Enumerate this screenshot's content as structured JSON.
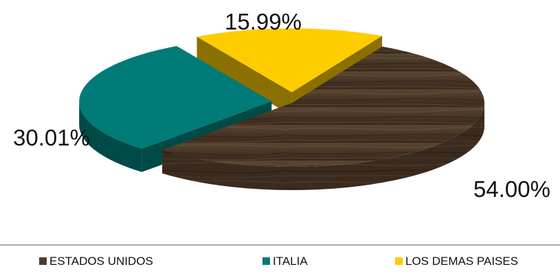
{
  "chart_data": {
    "type": "pie",
    "style": "3d-exploded",
    "legend_position": "bottom",
    "slices": [
      {
        "name": "ESTADOS UNIDOS",
        "value": 54.0,
        "label": "54.00%",
        "color": "#4e3b2a",
        "texture": "wood-grain"
      },
      {
        "name": "ITALIA",
        "value": 30.01,
        "label": "30.01%",
        "color": "#007b78"
      },
      {
        "name": "LOS DEMAS PAISES",
        "value": 15.99,
        "label": "15.99%",
        "color": "#ffcc00"
      }
    ],
    "legend": [
      {
        "name": "ESTADOS UNIDOS",
        "color": "#4e3b2a"
      },
      {
        "name": "ITALIA",
        "color": "#007b78"
      },
      {
        "name": "LOS DEMAS PAISES",
        "color": "#ffcc00"
      }
    ]
  }
}
